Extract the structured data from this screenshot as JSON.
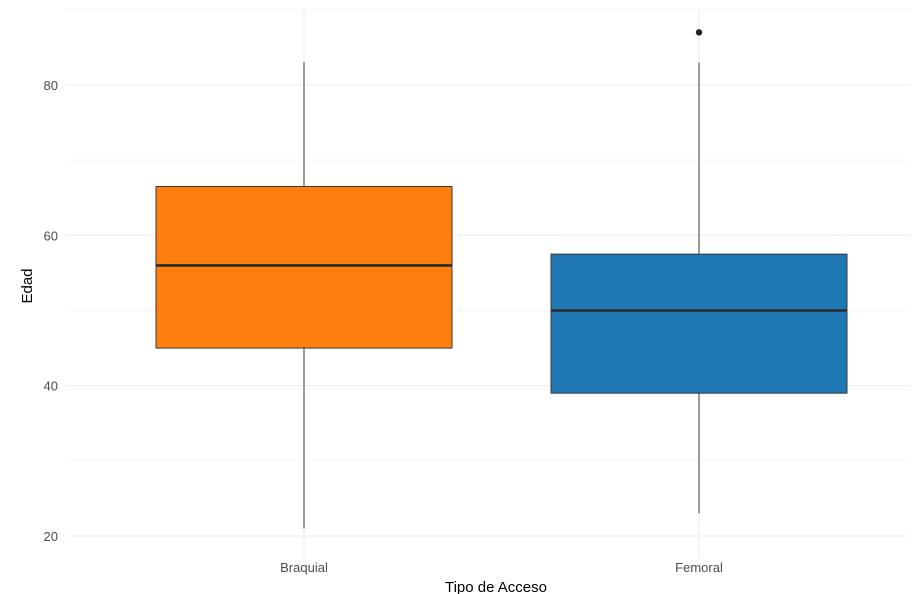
{
  "chart_data": {
    "type": "boxplot",
    "xlabel": "Tipo de Acceso",
    "ylabel": "Edad",
    "ylim": [
      17,
      90
    ],
    "yticks": [
      20,
      40,
      60,
      80
    ],
    "categories": [
      "Braquial",
      "Femoral"
    ],
    "boxes": [
      {
        "category": "Braquial",
        "min": 21,
        "q1": 45,
        "median": 56,
        "q3": 66.5,
        "max": 83,
        "outliers": [],
        "color": "#ff7f0e"
      },
      {
        "category": "Femoral",
        "min": 23,
        "q1": 39,
        "median": 50,
        "q3": 57.5,
        "max": 83,
        "outliers": [
          87
        ],
        "color": "#1f77b4"
      }
    ],
    "grid": true,
    "legend": "none"
  }
}
